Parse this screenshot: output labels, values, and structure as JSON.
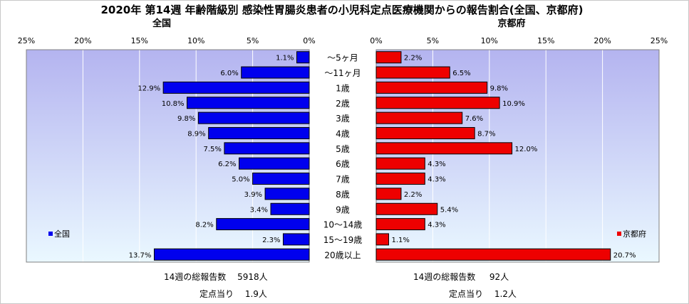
{
  "chart_data": {
    "type": "bar",
    "orientation": "horizontal",
    "title": "2020年 第14週 年齢階級別 感染性胃腸炎患者の小児科定点医療機関からの報告割合(全国、京都府)",
    "categories": [
      "～5ヶ月",
      "～11ヶ月",
      "1歳",
      "2歳",
      "3歳",
      "4歳",
      "5歳",
      "6歳",
      "7歳",
      "8歳",
      "9歳",
      "10～14歳",
      "15～19歳",
      "20歳以上"
    ],
    "xlim": [
      0,
      25
    ],
    "xticks": [
      "0%",
      "5%",
      "10%",
      "15%",
      "20%",
      "25%"
    ],
    "grid": true,
    "series": [
      {
        "name": "全国",
        "panel_title": "全国",
        "color": "#0000ee",
        "direction": "left",
        "values": [
          1.1,
          6.0,
          12.9,
          10.8,
          9.8,
          8.9,
          7.5,
          6.2,
          5.0,
          3.9,
          3.4,
          8.2,
          2.3,
          13.7
        ],
        "labels": [
          "1.1%",
          "6.0%",
          "12.9%",
          "10.8%",
          "9.8%",
          "8.9%",
          "7.5%",
          "6.2%",
          "5.0%",
          "3.9%",
          "3.4%",
          "8.2%",
          "2.3%",
          "13.7%"
        ]
      },
      {
        "name": "京都府",
        "panel_title": "京都府",
        "color": "#ee0000",
        "direction": "right",
        "values": [
          2.2,
          6.5,
          9.8,
          10.9,
          7.6,
          8.7,
          12.0,
          4.3,
          4.3,
          2.2,
          5.4,
          4.3,
          1.1,
          20.7
        ],
        "labels": [
          "2.2%",
          "6.5%",
          "9.8%",
          "10.9%",
          "7.6%",
          "8.7%",
          "12.0%",
          "4.3%",
          "4.3%",
          "2.2%",
          "5.4%",
          "4.3%",
          "1.1%",
          "20.7%"
        ]
      }
    ],
    "legend": [
      "全国",
      "京都府"
    ]
  },
  "colors": {
    "plot_bg_top": "#b4b4f0",
    "plot_bg_bottom": "#eaf8ff"
  },
  "footer": {
    "national_total": "14週の総報告数　 5918人",
    "national_per_site": "定点当り　 1.9人",
    "kyoto_total": "14週の総報告数　  92人",
    "kyoto_per_site": "定点当り　 1.2人"
  }
}
